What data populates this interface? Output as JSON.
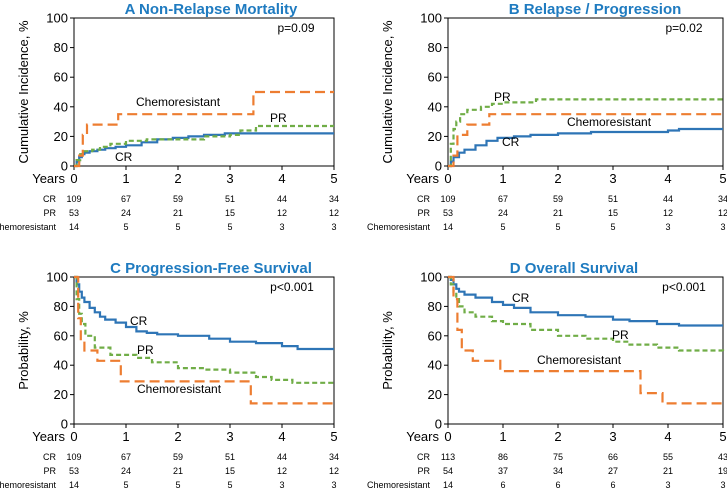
{
  "colors": {
    "CR": "#2E75B6",
    "PR": "#70AD47",
    "Chemoresistant": "#ED7D31",
    "title": "#1F7BC0"
  },
  "chart_data": [
    {
      "panel": "A",
      "type": "line",
      "step": true,
      "title": "A Non-Relapse Mortality",
      "ylabel": "Cumulative Incidence, %",
      "xlabel": "Years",
      "xlim": [
        0,
        5
      ],
      "ylim": [
        0,
        100
      ],
      "xticks": [
        "0",
        "1",
        "2",
        "3",
        "4",
        "5"
      ],
      "yticks": [
        "0",
        "20",
        "40",
        "60",
        "80",
        "100"
      ],
      "pvalue": "p=0.09",
      "series": [
        {
          "name": "CR",
          "label": "CR",
          "x": [
            0,
            0.05,
            0.1,
            0.15,
            0.2,
            0.3,
            0.45,
            0.6,
            0.8,
            1.0,
            1.3,
            1.6,
            1.9,
            2.2,
            2.5,
            2.9,
            3.2,
            5
          ],
          "y": [
            0,
            3,
            6,
            8,
            9,
            10,
            11,
            12,
            13,
            14,
            16,
            18,
            19,
            20,
            21,
            22,
            22,
            22
          ]
        },
        {
          "name": "PR",
          "label": "PR",
          "x": [
            0,
            0.05,
            0.12,
            0.2,
            0.35,
            0.5,
            0.7,
            1.0,
            1.4,
            2.0,
            2.5,
            3.0,
            3.2,
            3.5,
            5
          ],
          "y": [
            0,
            4,
            8,
            10,
            11,
            13,
            15,
            17,
            18,
            18,
            20,
            21,
            24,
            27,
            27
          ]
        },
        {
          "name": "Chemoresistant",
          "label": "Chemoresistant",
          "x": [
            0,
            0.1,
            0.17,
            0.25,
            0.85,
            1.0,
            3.2,
            3.45,
            5
          ],
          "y": [
            0,
            7,
            21,
            28,
            35,
            35,
            35,
            50,
            50
          ]
        }
      ],
      "labels": {
        "CR": "CR",
        "PR": "PR",
        "Chemoresistant": "Chemoresistant"
      },
      "at_risk": {
        "rows": [
          "CR",
          "PR",
          "Chemoresistant"
        ],
        "values": [
          [
            "109",
            "67",
            "59",
            "51",
            "44",
            "34"
          ],
          [
            "53",
            "24",
            "21",
            "15",
            "12",
            "12"
          ],
          [
            "14",
            "5",
            "5",
            "5",
            "3",
            "3"
          ]
        ]
      }
    },
    {
      "panel": "B",
      "type": "line",
      "step": true,
      "title": "B Relapse / Progression",
      "ylabel": "Cumulative Incidence, %",
      "xlabel": "Years",
      "xlim": [
        0,
        5
      ],
      "ylim": [
        0,
        100
      ],
      "xticks": [
        "0",
        "1",
        "2",
        "3",
        "4",
        "5"
      ],
      "yticks": [
        "0",
        "20",
        "40",
        "60",
        "80",
        "100"
      ],
      "pvalue": "p=0.02",
      "series": [
        {
          "name": "CR",
          "label": "CR",
          "x": [
            0,
            0.05,
            0.1,
            0.2,
            0.3,
            0.5,
            0.7,
            0.9,
            1.2,
            1.5,
            2.0,
            2.6,
            3.2,
            4.0,
            4.2,
            5
          ],
          "y": [
            0,
            3,
            6,
            9,
            11,
            14,
            17,
            19,
            20,
            21,
            22,
            23,
            23,
            24,
            25,
            25
          ]
        },
        {
          "name": "PR",
          "label": "PR",
          "x": [
            0,
            0.05,
            0.1,
            0.15,
            0.22,
            0.35,
            0.6,
            0.8,
            1.0,
            1.6,
            5
          ],
          "y": [
            0,
            15,
            25,
            30,
            35,
            38,
            40,
            42,
            43,
            45,
            45
          ]
        },
        {
          "name": "Chemoresistant",
          "label": "Chemoresistant",
          "x": [
            0,
            0.1,
            0.17,
            0.35,
            0.75,
            5
          ],
          "y": [
            0,
            7,
            21,
            28,
            35,
            35
          ]
        }
      ],
      "labels": {
        "CR": "CR",
        "PR": "PR",
        "Chemoresistant": "Chemoresistant"
      },
      "at_risk": {
        "rows": [
          "CR",
          "PR",
          "Chemoresistant"
        ],
        "values": [
          [
            "109",
            "67",
            "59",
            "51",
            "44",
            "34"
          ],
          [
            "53",
            "24",
            "21",
            "15",
            "12",
            "12"
          ],
          [
            "14",
            "5",
            "5",
            "5",
            "3",
            "3"
          ]
        ]
      }
    },
    {
      "panel": "C",
      "type": "line",
      "step": true,
      "title": "C Progression-Free Survival",
      "ylabel": "Probability, %",
      "xlabel": "Years",
      "xlim": [
        0,
        5
      ],
      "ylim": [
        0,
        100
      ],
      "xticks": [
        "0",
        "1",
        "2",
        "3",
        "4",
        "5"
      ],
      "yticks": [
        "0",
        "20",
        "40",
        "60",
        "80",
        "100"
      ],
      "pvalue": "p<0.001",
      "series": [
        {
          "name": "CR",
          "label": "CR",
          "x": [
            0,
            0.05,
            0.1,
            0.15,
            0.2,
            0.3,
            0.4,
            0.5,
            0.6,
            0.8,
            1.0,
            1.2,
            1.4,
            1.6,
            2.0,
            2.6,
            3.0,
            3.5,
            4.0,
            4.3,
            5
          ],
          "y": [
            100,
            95,
            90,
            86,
            83,
            79,
            76,
            73,
            71,
            69,
            66,
            63,
            62,
            61,
            60,
            58,
            56,
            55,
            53,
            51,
            51
          ]
        },
        {
          "name": "PR",
          "label": "PR",
          "x": [
            0,
            0.05,
            0.1,
            0.15,
            0.22,
            0.4,
            0.7,
            1.2,
            1.5,
            2.0,
            2.5,
            3.0,
            3.5,
            3.8,
            4.2,
            5
          ],
          "y": [
            100,
            85,
            75,
            68,
            60,
            52,
            47,
            45,
            42,
            38,
            37,
            35,
            32,
            30,
            28,
            28
          ]
        },
        {
          "name": "Chemoresistant",
          "label": "Chemoresistant",
          "x": [
            0,
            0.08,
            0.13,
            0.2,
            0.45,
            0.65,
            0.9,
            3.4,
            5
          ],
          "y": [
            100,
            72,
            57,
            50,
            43,
            43,
            29,
            14,
            14
          ]
        }
      ],
      "labels": {
        "CR": "CR",
        "PR": "PR",
        "Chemoresistant": "Chemoresistant"
      },
      "at_risk": {
        "rows": [
          "CR",
          "PR",
          "Chemoresistant"
        ],
        "values": [
          [
            "109",
            "67",
            "59",
            "51",
            "44",
            "34"
          ],
          [
            "53",
            "24",
            "21",
            "15",
            "12",
            "12"
          ],
          [
            "14",
            "5",
            "5",
            "5",
            "3",
            "3"
          ]
        ]
      }
    },
    {
      "panel": "D",
      "type": "line",
      "step": true,
      "title": "D Overall Survival",
      "ylabel": "Probability, %",
      "xlabel": "Years",
      "xlim": [
        0,
        5
      ],
      "ylim": [
        0,
        100
      ],
      "xticks": [
        "0",
        "1",
        "2",
        "3",
        "4",
        "5"
      ],
      "yticks": [
        "0",
        "20",
        "40",
        "60",
        "80",
        "100"
      ],
      "pvalue": "p<0.001",
      "series": [
        {
          "name": "CR",
          "label": "CR",
          "x": [
            0,
            0.05,
            0.1,
            0.15,
            0.2,
            0.3,
            0.5,
            0.8,
            1.0,
            1.2,
            1.5,
            2.0,
            2.5,
            3.0,
            3.3,
            3.8,
            4.2,
            5
          ],
          "y": [
            100,
            98,
            95,
            92,
            90,
            88,
            86,
            83,
            81,
            79,
            76,
            74,
            73,
            71,
            70,
            68,
            67,
            67
          ]
        },
        {
          "name": "PR",
          "label": "PR",
          "x": [
            0,
            0.05,
            0.1,
            0.15,
            0.2,
            0.3,
            0.5,
            0.8,
            1.0,
            1.5,
            2.0,
            2.5,
            3.0,
            3.3,
            3.8,
            4.2,
            5
          ],
          "y": [
            100,
            95,
            90,
            85,
            80,
            76,
            73,
            70,
            68,
            64,
            60,
            58,
            56,
            54,
            52,
            50,
            48
          ]
        },
        {
          "name": "Chemoresistant",
          "label": "Chemoresistant",
          "x": [
            0,
            0.1,
            0.17,
            0.25,
            0.45,
            0.95,
            3.4,
            3.5,
            3.9,
            5
          ],
          "y": [
            100,
            85,
            64,
            50,
            43,
            36,
            36,
            21,
            14,
            14
          ]
        }
      ],
      "labels": {
        "CR": "CR",
        "PR": "PR",
        "Chemoresistant": "Chemoresistant"
      },
      "at_risk": {
        "rows": [
          "CR",
          "PR",
          "Chemoresistant"
        ],
        "values": [
          [
            "113",
            "86",
            "75",
            "66",
            "55",
            "43"
          ],
          [
            "54",
            "37",
            "34",
            "27",
            "21",
            "19"
          ],
          [
            "14",
            "6",
            "6",
            "6",
            "3",
            "3"
          ]
        ]
      }
    }
  ]
}
